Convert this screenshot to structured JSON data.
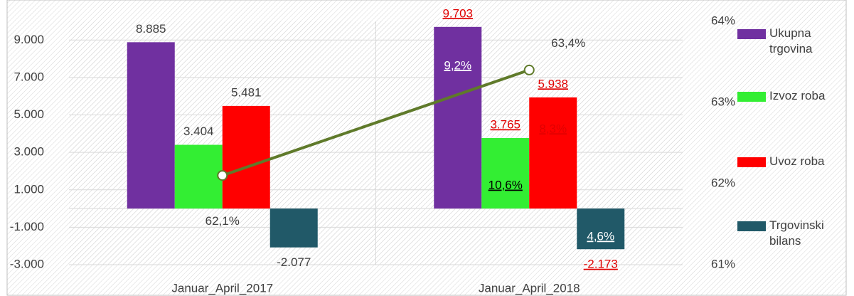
{
  "chart_data": {
    "type": "bar",
    "categories": [
      "Januar_April_2017",
      "Januar_April_2018"
    ],
    "series": [
      {
        "name": "Ukupna trgovina",
        "color": "#7030a0",
        "values": [
          8885,
          9703
        ],
        "value_labels": [
          "8.885",
          "9.703"
        ],
        "change_labels": [
          null,
          "9,2%"
        ]
      },
      {
        "name": "Izvoz roba",
        "color": "#33ee33",
        "values": [
          3404,
          3765
        ],
        "value_labels": [
          "3.404",
          "3.765"
        ],
        "change_labels": [
          null,
          "10,6%"
        ]
      },
      {
        "name": "Uvoz roba",
        "color": "#ff0000",
        "values": [
          5481,
          5938
        ],
        "value_labels": [
          "5.481",
          "5.938"
        ],
        "change_labels": [
          null,
          "8,3%"
        ]
      },
      {
        "name": "Trgovinski bilans",
        "color": "#215968",
        "values": [
          -2077,
          -2173
        ],
        "value_labels": [
          "-2.077",
          "-2.173"
        ],
        "change_labels": [
          null,
          "4,6%"
        ]
      }
    ],
    "line": {
      "type": "line",
      "axis": "y2",
      "color": "#5f7a2a",
      "values": [
        62.1,
        63.4
      ],
      "value_labels": [
        "62,1%",
        "63,4%"
      ]
    },
    "ylim": [
      -3000,
      10000
    ],
    "yticks": [
      {
        "value": -3000,
        "label": "-3.000"
      },
      {
        "value": -1000,
        "label": "-1.000"
      },
      {
        "value": 1000,
        "label": "1.000"
      },
      {
        "value": 3000,
        "label": "3.000"
      },
      {
        "value": 5000,
        "label": "5.000"
      },
      {
        "value": 7000,
        "label": "7.000"
      },
      {
        "value": 9000,
        "label": "9.000"
      }
    ],
    "y2lim": [
      61,
      64
    ],
    "y2ticks": [
      {
        "value": 61,
        "label": "61%"
      },
      {
        "value": 62,
        "label": "62%"
      },
      {
        "value": 63,
        "label": "63%"
      },
      {
        "value": 64,
        "label": "64%"
      }
    ],
    "legend": "right"
  }
}
